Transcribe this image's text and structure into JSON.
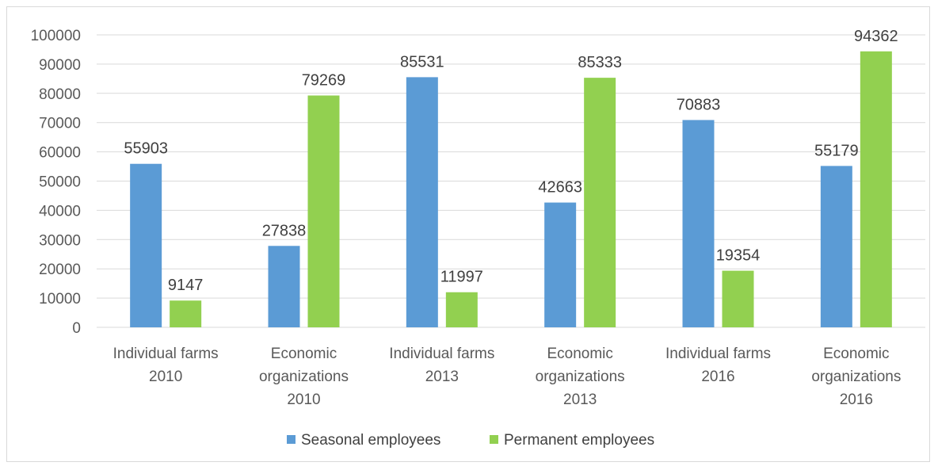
{
  "chart_data": {
    "type": "bar",
    "title": "",
    "xlabel": "",
    "ylabel": "",
    "categories": [
      [
        "Individual farms",
        "2010"
      ],
      [
        "Economic",
        "organizations",
        "2010"
      ],
      [
        "Individual farms",
        "2013"
      ],
      [
        "Economic",
        "organizations",
        "2013"
      ],
      [
        "Individual farms",
        "2016"
      ],
      [
        "Economic",
        "organizations",
        "2016"
      ]
    ],
    "series": [
      {
        "name": "Seasonal employees",
        "color": "#5b9bd5",
        "values": [
          55903,
          27838,
          85531,
          42663,
          70883,
          55179
        ]
      },
      {
        "name": "Permanent employees",
        "color": "#92d050",
        "values": [
          9147,
          79269,
          11997,
          85333,
          19354,
          94362
        ]
      }
    ],
    "ylim": [
      0,
      100000
    ],
    "yticks": [
      "0",
      "10000",
      "20000",
      "30000",
      "40000",
      "50000",
      "60000",
      "70000",
      "80000",
      "90000",
      "100000"
    ],
    "grid": true,
    "legend_position": "bottom"
  }
}
